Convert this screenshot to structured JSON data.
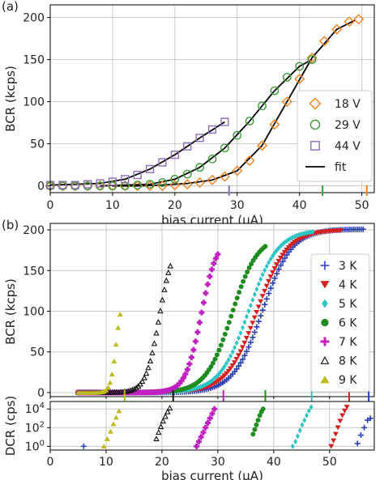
{
  "chart_data": [
    {
      "panel_label": "(a)",
      "type": "scatter",
      "xlabel": "bias current (μA)",
      "ylabel": "BCR (kcps)",
      "xlim": [
        0,
        52
      ],
      "ylim": [
        -8,
        215
      ],
      "xticks": [
        0,
        10,
        20,
        30,
        40,
        50
      ],
      "yticks": [
        0,
        50,
        100,
        150,
        200
      ],
      "grid": true,
      "legend_position": "right",
      "series": [
        {
          "name": "18 V",
          "marker": "diamond-open",
          "color": "#f0821e",
          "x": [
            0,
            2,
            4,
            6,
            8,
            10,
            12,
            14,
            16,
            18,
            20,
            22,
            24,
            26,
            28,
            30,
            32,
            34,
            36,
            38,
            40,
            42,
            44,
            46,
            48,
            49.5
          ],
          "y": [
            0,
            0,
            0,
            0,
            0,
            0,
            0,
            0,
            0,
            0,
            1,
            2,
            4,
            7,
            11,
            18,
            30,
            48,
            73,
            100,
            127,
            152,
            172,
            186,
            195,
            198
          ]
        },
        {
          "name": "29 V",
          "marker": "circle-open",
          "color": "#3c9a3c",
          "x": [
            0,
            2,
            4,
            6,
            8,
            10,
            12,
            14,
            16,
            18,
            20,
            22,
            24,
            26,
            28,
            30,
            32,
            34,
            36,
            38,
            40,
            42
          ],
          "y": [
            0,
            0,
            0,
            0,
            0,
            0,
            0,
            1,
            2,
            4,
            8,
            14,
            22,
            32,
            45,
            60,
            77,
            95,
            113,
            129,
            142,
            150
          ]
        },
        {
          "name": "44 V",
          "marker": "square-open",
          "color": "#8a70b4",
          "x": [
            0,
            2,
            4,
            6,
            8,
            10,
            12,
            14,
            16,
            18,
            20,
            22,
            24,
            26,
            28
          ],
          "y": [
            1,
            1,
            1,
            2,
            3,
            5,
            8,
            13,
            20,
            28,
            37,
            47,
            57,
            67,
            76
          ]
        },
        {
          "name": "fit",
          "marker": "line",
          "color": "#000000",
          "fits": [
            {
              "x": [
                10,
                14,
                18,
                22,
                26,
                30,
                34,
                38,
                42,
                46,
                49
              ],
              "y": [
                0,
                0,
                1,
                3,
                7,
                18,
                48,
                100,
                152,
                186,
                197
              ]
            },
            {
              "x": [
                8,
                12,
                16,
                20,
                24,
                28,
                32,
                36,
                40,
                42
              ],
              "y": [
                0,
                1,
                2,
                8,
                22,
                45,
                77,
                113,
                142,
                150
              ]
            },
            {
              "x": [
                0,
                4,
                8,
                12,
                16,
                20,
                24,
                28
              ],
              "y": [
                1,
                2,
                3,
                8,
                20,
                37,
                57,
                76
              ]
            }
          ]
        }
      ],
      "axis_marks": [
        {
          "x": 28.7,
          "color": "#8a70b4"
        },
        {
          "x": 43.7,
          "color": "#3c9a3c"
        },
        {
          "x": 50.8,
          "color": "#f0821e"
        }
      ]
    },
    {
      "panel_label": "(b)",
      "type": "scatter",
      "xlabel": "bias current (μA)",
      "ylabel": "BCR (kcps)",
      "xlim": [
        0,
        58
      ],
      "ylim": [
        -5,
        208
      ],
      "xticks": [
        0,
        10,
        20,
        30,
        40,
        50
      ],
      "yticks": [
        0,
        50,
        100,
        150,
        200
      ],
      "grid": true,
      "legend_position": "right",
      "series": [
        {
          "name": "3 K",
          "marker": "plus",
          "color": "#2a3fb4",
          "x_min": 5,
          "x_max": 56,
          "x_mid": 38,
          "width": 2.6,
          "y_max": 201
        },
        {
          "name": "4 K",
          "marker": "triangle-down",
          "color": "#d42020",
          "x_min": 5,
          "x_max": 52,
          "x_mid": 37,
          "width": 2.7,
          "y_max": 200
        },
        {
          "name": "5 K",
          "marker": "diamond",
          "color": "#2ec4c4",
          "x_min": 5,
          "x_max": 47,
          "x_mid": 35.5,
          "width": 2.6,
          "y_max": 200
        },
        {
          "name": "6 K",
          "marker": "circle",
          "color": "#1f8c1f",
          "x_min": 5,
          "x_max": 38.5,
          "x_mid": 32.5,
          "width": 2.3,
          "y_max": 193
        },
        {
          "name": "7 K",
          "marker": "plus-bold",
          "color": "#c020c0",
          "x_min": 5,
          "x_max": 30,
          "x_mid": 27,
          "width": 1.4,
          "y_max": 190
        },
        {
          "name": "8 K",
          "marker": "triangle-up-open",
          "color": "#111111",
          "x_min": 5,
          "x_max": 21.5,
          "x_mid": 19.5,
          "width": 1.2,
          "y_max": 185
        },
        {
          "name": "9 K",
          "marker": "triangle-up",
          "color": "#bcbc1c",
          "x_min": 5,
          "x_max": 12.5,
          "x_mid": 11.8,
          "width": 0.5,
          "y_max": 120
        }
      ],
      "axis_marks": [
        {
          "x": 13.3,
          "color": "#bcbc1c"
        },
        {
          "x": 22,
          "color": "#111111"
        },
        {
          "x": 31,
          "color": "#c020c0"
        },
        {
          "x": 38.5,
          "color": "#1f8c1f"
        },
        {
          "x": 46.8,
          "color": "#2ec4c4"
        },
        {
          "x": 53.5,
          "color": "#d42020"
        },
        {
          "x": 57,
          "color": "#2a3fb4"
        }
      ]
    },
    {
      "type": "scatter",
      "xlabel": "bias current (μA)",
      "ylabel": "DCR (cps)",
      "xlim": [
        0,
        58
      ],
      "log_y": true,
      "ylim_log10": [
        -0.4,
        4.8
      ],
      "xticks": [
        0,
        10,
        20,
        30,
        40,
        50
      ],
      "ytick_exponents": [
        0,
        2,
        4
      ],
      "ytick_base": "10",
      "grid": true,
      "series": [
        {
          "name": "3 K",
          "marker": "plus",
          "color": "#2a3fb4",
          "x": [
            6,
            55,
            55.6,
            56.2,
            56.8,
            57.3
          ],
          "log10_y": [
            0,
            0.3,
            1.2,
            2,
            2.8,
            3
          ]
        },
        {
          "name": "4 K",
          "marker": "triangle-down",
          "color": "#d42020",
          "x": [
            50.3,
            50.7,
            51.1,
            51.5,
            51.9,
            52.3,
            52.7,
            53.1
          ],
          "log10_y": [
            0,
            0.6,
            1.3,
            2,
            2.7,
            3.3,
            3.8,
            4.2
          ]
        },
        {
          "name": "5 K",
          "marker": "diamond",
          "color": "#2ec4c4",
          "x": [
            43.4,
            43.9,
            44.3,
            44.7,
            45.1,
            45.5,
            45.9,
            46.3,
            46.7
          ],
          "log10_y": [
            0,
            0.5,
            1.1,
            1.7,
            2.3,
            2.8,
            3.3,
            3.8,
            4.2
          ]
        },
        {
          "name": "6 K",
          "marker": "circle",
          "color": "#1f8c1f",
          "x": [
            36.3,
            36.6,
            36.9,
            37.2,
            37.5,
            37.8,
            38.1
          ],
          "log10_y": [
            1.3,
            1.8,
            2.3,
            2.8,
            3.3,
            3.7,
            4
          ]
        },
        {
          "name": "7 K",
          "marker": "plus-bold",
          "color": "#c020c0",
          "x": [
            26.2,
            26.6,
            27,
            27.4,
            27.8,
            28.2,
            28.6,
            29,
            29.4
          ],
          "log10_y": [
            0,
            0.5,
            1,
            1.5,
            2,
            2.5,
            3,
            3.5,
            4
          ]
        },
        {
          "name": "8 K",
          "marker": "triangle-up-open",
          "color": "#111111",
          "x": [
            19,
            19.4,
            19.8,
            20.2,
            20.6,
            21,
            21.4
          ],
          "log10_y": [
            0.8,
            1.5,
            2.1,
            2.7,
            3.2,
            3.7,
            4.1
          ]
        },
        {
          "name": "9 K",
          "marker": "triangle-up",
          "color": "#bcbc1c",
          "x": [
            9.6,
            10.2,
            10.8,
            11.3,
            11.8,
            12.3
          ],
          "log10_y": [
            0,
            0.8,
            1.6,
            2.4,
            3.1,
            3.8
          ]
        }
      ]
    }
  ]
}
